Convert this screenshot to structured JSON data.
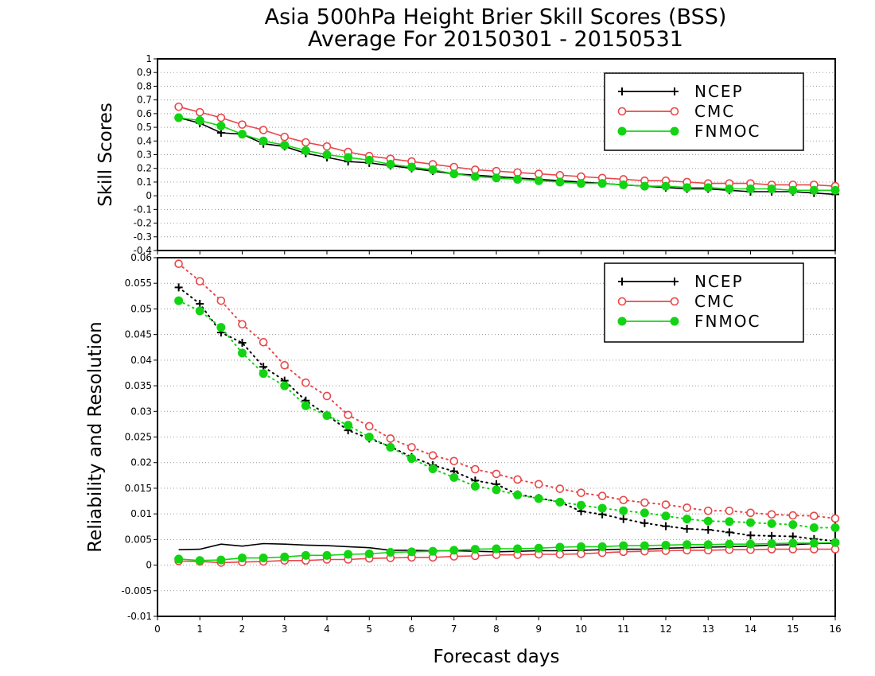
{
  "title_line1": "Asia 500hPa Height Brier Skill Scores (BSS)",
  "title_line2": "Average For 20150301 - 20150531",
  "xlabel": "Forecast days",
  "colors": {
    "NCEP": "#000000",
    "CMC": "#e8474a",
    "FNMOC": "#12d412"
  },
  "chart_data": [
    {
      "type": "line",
      "ylabel": "Skill Scores",
      "xlim": [
        0,
        16
      ],
      "ylim": [
        -0.4,
        1
      ],
      "x_ticks": [
        "0",
        "1",
        "2",
        "3",
        "4",
        "5",
        "6",
        "7",
        "8",
        "9",
        "10",
        "11",
        "12",
        "13",
        "14",
        "15",
        "16"
      ],
      "y_ticks": [
        "-0.4",
        "-0.3",
        "-0.2",
        "-0.1",
        "0",
        "0.1",
        "0.2",
        "0.3",
        "0.4",
        "0.5",
        "0.6",
        "0.7",
        "0.8",
        "0.9",
        "1"
      ],
      "grid": true,
      "legend": {
        "position": "top-right",
        "entries": [
          "NCEP",
          "CMC",
          "FNMOC"
        ]
      },
      "x": [
        0.5,
        1,
        1.5,
        2,
        2.5,
        3,
        3.5,
        4,
        4.5,
        5,
        5.5,
        6,
        6.5,
        7,
        7.5,
        8,
        8.5,
        9,
        9.5,
        10,
        10.5,
        11,
        11.5,
        12,
        12.5,
        13,
        13.5,
        14,
        14.5,
        15,
        15.5,
        16
      ],
      "series": [
        {
          "name": "NCEP",
          "style": "solid",
          "marker": "plus",
          "values": [
            0.57,
            0.53,
            0.46,
            0.45,
            0.38,
            0.36,
            0.31,
            0.28,
            0.25,
            0.24,
            0.22,
            0.2,
            0.18,
            0.16,
            0.15,
            0.14,
            0.13,
            0.12,
            0.11,
            0.1,
            0.09,
            0.08,
            0.07,
            0.06,
            0.05,
            0.05,
            0.04,
            0.03,
            0.03,
            0.03,
            0.02,
            0.01
          ]
        },
        {
          "name": "CMC",
          "style": "solid",
          "marker": "open-circle",
          "values": [
            0.65,
            0.61,
            0.57,
            0.52,
            0.48,
            0.43,
            0.39,
            0.36,
            0.32,
            0.29,
            0.27,
            0.25,
            0.23,
            0.21,
            0.19,
            0.18,
            0.17,
            0.16,
            0.15,
            0.14,
            0.13,
            0.12,
            0.11,
            0.11,
            0.1,
            0.09,
            0.09,
            0.09,
            0.08,
            0.08,
            0.08,
            0.07
          ]
        },
        {
          "name": "FNMOC",
          "style": "solid",
          "marker": "filled-circle",
          "values": [
            0.57,
            0.55,
            0.51,
            0.45,
            0.4,
            0.37,
            0.33,
            0.3,
            0.28,
            0.26,
            0.23,
            0.21,
            0.19,
            0.16,
            0.14,
            0.13,
            0.12,
            0.11,
            0.1,
            0.09,
            0.09,
            0.08,
            0.07,
            0.07,
            0.06,
            0.06,
            0.05,
            0.05,
            0.05,
            0.04,
            0.04,
            0.04
          ]
        }
      ]
    },
    {
      "type": "line",
      "ylabel": "Reliability and Resolution",
      "xlim": [
        0,
        16
      ],
      "ylim": [
        -0.01,
        0.06
      ],
      "x_ticks": [
        "0",
        "1",
        "2",
        "3",
        "4",
        "5",
        "6",
        "7",
        "8",
        "9",
        "10",
        "11",
        "12",
        "13",
        "14",
        "15",
        "16"
      ],
      "y_ticks": [
        "-0.01",
        "-0.005",
        "0",
        "0.005",
        "0.01",
        "0.015",
        "0.02",
        "0.025",
        "0.03",
        "0.035",
        "0.04",
        "0.045",
        "0.05",
        "0.055",
        "0.06"
      ],
      "grid": true,
      "legend": {
        "position": "top-right",
        "entries": [
          "NCEP",
          "CMC",
          "FNMOC"
        ]
      },
      "x": [
        0.5,
        1,
        1.5,
        2,
        2.5,
        3,
        3.5,
        4,
        4.5,
        5,
        5.5,
        6,
        6.5,
        7,
        7.5,
        8,
        8.5,
        9,
        9.5,
        10,
        10.5,
        11,
        11.5,
        12,
        12.5,
        13,
        13.5,
        14,
        14.5,
        15,
        15.5,
        16
      ],
      "series": [
        {
          "name": "NCEP",
          "style": "dotted",
          "marker": "plus",
          "values": [
            0.0542,
            0.051,
            0.0454,
            0.0434,
            0.0387,
            0.036,
            0.0321,
            0.0293,
            0.0263,
            0.0247,
            0.0231,
            0.0211,
            0.0195,
            0.0183,
            0.0165,
            0.0158,
            0.0138,
            0.0131,
            0.0123,
            0.0105,
            0.0099,
            0.009,
            0.0082,
            0.0076,
            0.0071,
            0.0069,
            0.0064,
            0.0058,
            0.0057,
            0.0056,
            0.0051,
            0.0047
          ]
        },
        {
          "name": "CMC",
          "style": "dotted",
          "marker": "open-circle",
          "values": [
            0.0588,
            0.0554,
            0.0516,
            0.047,
            0.0435,
            0.039,
            0.0356,
            0.033,
            0.0293,
            0.0271,
            0.0247,
            0.023,
            0.0214,
            0.0203,
            0.0187,
            0.0178,
            0.0167,
            0.0158,
            0.0149,
            0.0141,
            0.0135,
            0.0127,
            0.0122,
            0.0118,
            0.0112,
            0.0106,
            0.0106,
            0.0102,
            0.0099,
            0.0097,
            0.0096,
            0.0091
          ]
        },
        {
          "name": "FNMOC",
          "style": "dotted",
          "marker": "filled-circle",
          "values": [
            0.0516,
            0.0496,
            0.0464,
            0.0414,
            0.0374,
            0.035,
            0.0311,
            0.0292,
            0.0273,
            0.025,
            0.023,
            0.0208,
            0.0188,
            0.0171,
            0.0154,
            0.0147,
            0.0137,
            0.013,
            0.0123,
            0.0117,
            0.0111,
            0.0106,
            0.0102,
            0.0096,
            0.009,
            0.0086,
            0.0085,
            0.0083,
            0.0081,
            0.0079,
            0.0073,
            0.0073
          ]
        },
        {
          "name": "NCEP",
          "style": "solid",
          "marker": "none",
          "values": [
            0.003,
            0.0031,
            0.0041,
            0.0037,
            0.0042,
            0.0041,
            0.0039,
            0.0038,
            0.0036,
            0.0034,
            0.0029,
            0.0029,
            0.0028,
            0.0028,
            0.0027,
            0.0026,
            0.0027,
            0.0028,
            0.0028,
            0.0029,
            0.003,
            0.0031,
            0.0031,
            0.0033,
            0.0034,
            0.0035,
            0.0036,
            0.0037,
            0.0039,
            0.004,
            0.0042,
            0.0043
          ]
        },
        {
          "name": "CMC",
          "style": "solid",
          "marker": "open-circle",
          "values": [
            0.0008,
            0.0007,
            0.0005,
            0.0006,
            0.0007,
            0.0009,
            0.0009,
            0.0011,
            0.0011,
            0.0013,
            0.0014,
            0.0015,
            0.0015,
            0.0017,
            0.0018,
            0.002,
            0.002,
            0.0021,
            0.0021,
            0.0022,
            0.0024,
            0.0026,
            0.0027,
            0.0028,
            0.0029,
            0.0029,
            0.003,
            0.003,
            0.0031,
            0.0031,
            0.0031,
            0.0031
          ]
        },
        {
          "name": "FNMOC",
          "style": "solid",
          "marker": "filled-circle",
          "values": [
            0.0012,
            0.0009,
            0.001,
            0.0014,
            0.0014,
            0.0016,
            0.0019,
            0.0019,
            0.0021,
            0.0022,
            0.0025,
            0.0026,
            0.0027,
            0.0029,
            0.0031,
            0.0032,
            0.0032,
            0.0033,
            0.0035,
            0.0036,
            0.0036,
            0.0038,
            0.0038,
            0.0039,
            0.004,
            0.004,
            0.0041,
            0.0041,
            0.0042,
            0.0043,
            0.0043,
            0.0044
          ]
        }
      ]
    }
  ]
}
